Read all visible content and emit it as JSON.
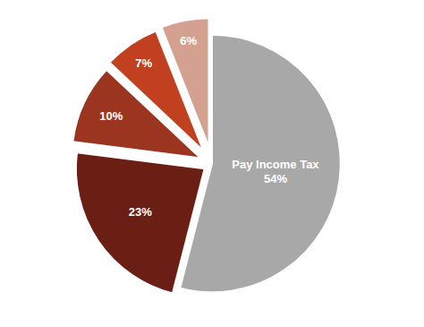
{
  "chart_data": {
    "type": "pie",
    "categories": [
      "Pay Income Tax",
      null,
      null,
      null,
      null
    ],
    "values": [
      54,
      23,
      10,
      7,
      6
    ],
    "value_labels": [
      "54%",
      "23%",
      "10%",
      "7%",
      "6%"
    ],
    "colors": [
      "#A8A8A8",
      "#6B1F14",
      "#9B3520",
      "#C04020",
      "#D4A090"
    ],
    "data_labels": true
  }
}
